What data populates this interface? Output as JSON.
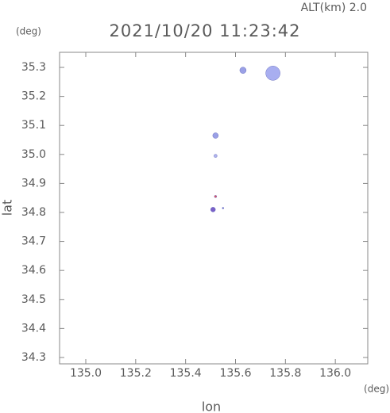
{
  "chart_data": {
    "type": "scatter",
    "title": "2021/10/20 11:23:42",
    "subtitle": "ALT(km) 2.0",
    "y_unit": "(deg)",
    "x_unit": "(deg)",
    "x_label": "lon",
    "y_label": "lat",
    "xlim": [
      134.895,
      136.13
    ],
    "ylim": [
      34.278,
      35.352
    ],
    "xticks": [
      {
        "value": 135,
        "label": "135.0"
      },
      135.2,
      135.4,
      135.6,
      135.8,
      {
        "value": 136,
        "label": "136.0"
      }
    ],
    "yticks": [
      34.3,
      34.4,
      34.5,
      34.6,
      34.7,
      34.8,
      34.9,
      {
        "value": 35,
        "label": "35.0"
      },
      35.1,
      35.2,
      35.3
    ],
    "x": [
      135.63,
      135.75,
      135.52,
      135.52,
      135.52,
      135.51,
      135.55
    ],
    "values": [
      35.29,
      35.28,
      35.065,
      34.995,
      34.855,
      34.81,
      34.815
    ],
    "sizes": [
      4,
      9,
      3.5,
      2,
      1.5,
      3,
      1
    ],
    "colors": [
      "#9aa0e6",
      "#a8aef0",
      "#9aa0e6",
      "#b0b4ee",
      "#e05060",
      "#7a60c8",
      "#6a6ad0"
    ]
  }
}
